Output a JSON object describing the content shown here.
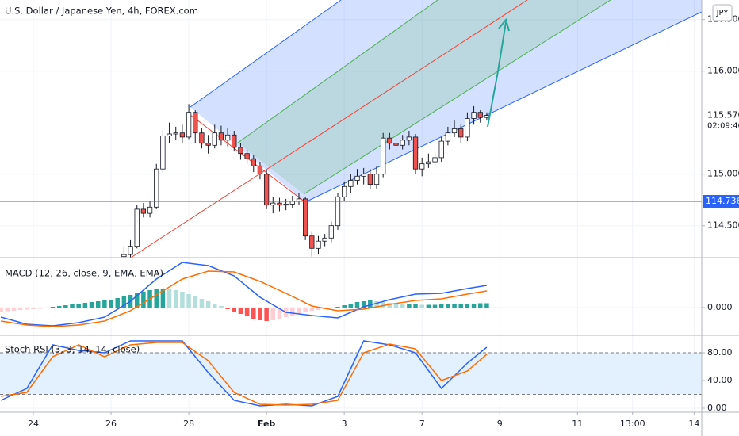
{
  "chart_data": [
    {
      "type": "candlestick",
      "title": "U.S. Dollar / Japanese Yen, 4h, FOREX.com",
      "currency": "JPY",
      "xlim": [
        -5.14,
        103.18
      ],
      "ylim": [
        114.19,
        116.69
      ],
      "yticks": [
        {
          "value": 114.5,
          "label": "114.500"
        },
        {
          "value": 115,
          "label": "115.000"
        },
        {
          "value": 116,
          "label": "116.000"
        },
        {
          "value": 116.5,
          "label": "116.500"
        }
      ],
      "grid": true,
      "up_color": "#ffffff",
      "down_color": "#ef5350",
      "wick_color": "#131722",
      "x": [
        14,
        15,
        16,
        17,
        18,
        19,
        20,
        21,
        22,
        23,
        24,
        25,
        26,
        27,
        28,
        29,
        30,
        31,
        32,
        33,
        34,
        35,
        36,
        37,
        38,
        39,
        40,
        41,
        42,
        43,
        44,
        45,
        46,
        47,
        48,
        49,
        50,
        51,
        52,
        53,
        54,
        55,
        56,
        57,
        58,
        59,
        60,
        61,
        62,
        63,
        64,
        65,
        66,
        67,
        68,
        69,
        70
      ],
      "open": [
        114.2,
        114.22,
        114.3,
        114.66,
        114.62,
        114.68,
        115.05,
        115.37,
        115.39,
        115.4,
        115.36,
        115.6,
        115.4,
        115.3,
        115.28,
        115.4,
        115.33,
        115.38,
        115.26,
        115.2,
        115.15,
        115.08,
        115.0,
        114.7,
        114.72,
        114.7,
        114.71,
        114.74,
        114.76,
        114.4,
        114.28,
        114.35,
        114.38,
        114.5,
        114.78,
        114.88,
        114.94,
        114.98,
        115.0,
        114.9,
        115.0,
        115.35,
        115.3,
        115.28,
        115.33,
        115.36,
        115.05,
        115.1,
        115.12,
        115.16,
        115.32,
        115.4,
        115.44,
        115.36,
        115.54,
        115.6,
        115.55
      ],
      "high": [
        114.3,
        114.36,
        114.7,
        114.72,
        114.74,
        115.1,
        115.43,
        115.5,
        115.46,
        115.48,
        115.68,
        115.62,
        115.45,
        115.38,
        115.48,
        115.47,
        115.45,
        115.42,
        115.3,
        115.24,
        115.19,
        115.12,
        115.04,
        114.78,
        114.77,
        114.76,
        114.79,
        114.82,
        114.78,
        114.44,
        114.4,
        114.42,
        114.54,
        114.82,
        114.93,
        115.0,
        115.05,
        115.06,
        115.05,
        115.08,
        115.4,
        115.4,
        115.36,
        115.38,
        115.42,
        115.39,
        115.16,
        115.2,
        115.22,
        115.36,
        115.46,
        115.52,
        115.48,
        115.6,
        115.66,
        115.62,
        115.6
      ],
      "low": [
        114.17,
        114.18,
        114.28,
        114.58,
        114.58,
        114.66,
        115.02,
        115.3,
        115.33,
        115.3,
        115.34,
        115.3,
        115.25,
        115.2,
        115.25,
        115.28,
        115.27,
        115.22,
        115.14,
        115.1,
        115.02,
        114.95,
        114.66,
        114.62,
        114.64,
        114.65,
        114.67,
        114.7,
        114.36,
        114.2,
        114.22,
        114.3,
        114.34,
        114.46,
        114.74,
        114.82,
        114.9,
        114.9,
        114.85,
        114.86,
        114.97,
        115.24,
        115.22,
        115.24,
        115.28,
        115.0,
        114.98,
        115.06,
        115.08,
        115.12,
        115.28,
        115.36,
        115.3,
        115.32,
        115.48,
        115.5,
        115.52
      ],
      "close": [
        114.22,
        114.3,
        114.66,
        114.62,
        114.68,
        115.05,
        115.37,
        115.39,
        115.4,
        115.36,
        115.6,
        115.4,
        115.3,
        115.28,
        115.4,
        115.33,
        115.38,
        115.26,
        115.2,
        115.15,
        115.08,
        115.0,
        114.7,
        114.72,
        114.7,
        114.71,
        114.74,
        114.76,
        114.4,
        114.28,
        114.35,
        114.38,
        114.5,
        114.78,
        114.88,
        114.94,
        114.98,
        115.0,
        114.9,
        115.0,
        115.35,
        115.3,
        115.28,
        115.33,
        115.36,
        115.05,
        115.1,
        115.12,
        115.16,
        115.32,
        115.4,
        115.44,
        115.36,
        115.54,
        115.6,
        115.55,
        115.57
      ],
      "last_value": {
        "value": 115.57,
        "label": "115.570"
      },
      "countdown": "02:09:46",
      "hline": {
        "value": 114.736,
        "label": "114.736",
        "color": "#2962ff"
      }
    },
    {
      "type": "macd",
      "title": "MACD (12, 26, close, 9, EMA, EMA)",
      "xlim": [
        -5.14,
        103.18
      ],
      "ylim": [
        -0.07,
        0.126
      ],
      "yticks": [
        {
          "value": 0,
          "label": "0.000"
        }
      ],
      "grid": true,
      "series": [
        {
          "color": "#2962ff",
          "x": [
            -5,
            -1,
            3,
            7,
            11,
            15,
            19,
            23,
            27,
            31,
            35,
            39,
            43,
            47,
            51,
            55,
            59,
            63,
            67,
            70
          ],
          "values": [
            -0.024,
            -0.042,
            -0.046,
            -0.038,
            -0.024,
            0.016,
            0.072,
            0.114,
            0.106,
            0.08,
            0.026,
            -0.012,
            -0.02,
            -0.026,
            0.002,
            0.02,
            0.034,
            0.036,
            0.048,
            0.056
          ]
        },
        {
          "color": "#ff6d00",
          "x": [
            -5,
            -1,
            3,
            7,
            11,
            15,
            19,
            23,
            27,
            31,
            35,
            39,
            43,
            47,
            51,
            55,
            59,
            63,
            67,
            70
          ],
          "values": [
            -0.034,
            -0.044,
            -0.048,
            -0.044,
            -0.034,
            -0.008,
            0.032,
            0.072,
            0.092,
            0.09,
            0.066,
            0.036,
            0.004,
            -0.008,
            -0.004,
            0.008,
            0.018,
            0.022,
            0.034,
            0.042
          ]
        }
      ],
      "histogram": {
        "colors": [
          "#26a69a",
          "#b2dfdb",
          "#ffcdd2",
          "#ff5252"
        ],
        "x": [
          -5,
          -4,
          -3,
          -2,
          -1,
          0,
          1,
          2,
          3,
          4,
          5,
          6,
          7,
          8,
          9,
          10,
          11,
          12,
          13,
          14,
          15,
          16,
          17,
          18,
          19,
          20,
          21,
          22,
          23,
          24,
          25,
          26,
          27,
          28,
          29,
          30,
          31,
          32,
          33,
          34,
          35,
          36,
          37,
          38,
          39,
          40,
          41,
          42,
          43,
          44,
          45,
          46,
          47,
          48,
          49,
          50,
          51,
          52,
          53,
          54,
          55,
          56,
          57,
          58,
          59,
          60,
          61,
          62,
          63,
          64,
          65,
          66,
          67,
          68,
          69,
          70
        ],
        "values": [
          -0.01,
          -0.009,
          -0.008,
          -0.006,
          -0.005,
          -0.004,
          -0.003,
          -0.002,
          0.002,
          0.004,
          0.006,
          0.008,
          0.01,
          0.012,
          0.014,
          0.016,
          0.018,
          0.02,
          0.024,
          0.028,
          0.032,
          0.036,
          0.04,
          0.044,
          0.046,
          0.048,
          0.046,
          0.044,
          0.04,
          0.034,
          0.028,
          0.022,
          0.016,
          0.01,
          0.004,
          -0.004,
          -0.01,
          -0.016,
          -0.022,
          -0.028,
          -0.032,
          -0.034,
          -0.032,
          -0.028,
          -0.024,
          -0.02,
          -0.016,
          -0.012,
          -0.008,
          -0.006,
          -0.004,
          -0.002,
          0.002,
          0.006,
          0.01,
          0.014,
          0.016,
          0.018,
          0.016,
          0.014,
          0.012,
          0.01,
          0.008,
          0.008,
          0.008,
          0.007,
          0.007,
          0.007,
          0.008,
          0.008,
          0.009,
          0.009,
          0.01,
          0.01,
          0.011,
          0.011
        ]
      }
    },
    {
      "type": "stochrsi",
      "title": "Stoch RSI (3, 3, 14, 14, close)",
      "xlim": [
        -5.14,
        103.18
      ],
      "ylim": [
        -5.71,
        105.14
      ],
      "yticks": [
        {
          "value": 0,
          "label": "0.00"
        },
        {
          "value": 40,
          "label": "40.00"
        },
        {
          "value": 80,
          "label": "80.00"
        }
      ],
      "grid": true,
      "band": [
        20,
        80
      ],
      "band_color": "#e3f0fd",
      "xticks": [
        {
          "value": 0,
          "label": "24"
        },
        {
          "value": 12,
          "label": "26"
        },
        {
          "value": 24,
          "label": "28"
        },
        {
          "value": 36,
          "label": "Feb"
        },
        {
          "value": 48,
          "label": "3"
        },
        {
          "value": 60,
          "label": "7"
        },
        {
          "value": 72,
          "label": "9"
        },
        {
          "value": 84,
          "label": "11"
        },
        {
          "value": 92.5,
          "label": "13:00"
        },
        {
          "value": 102,
          "label": "14"
        }
      ],
      "series": [
        {
          "color": "#2962ff",
          "x": [
            -5,
            -1,
            3,
            7,
            11,
            15,
            19,
            23,
            27,
            31,
            35,
            39,
            43,
            47,
            51,
            55,
            59,
            63,
            67,
            70
          ],
          "values": [
            11.4,
            28.6,
            91.4,
            83.4,
            80.0,
            97.1,
            97.1,
            97.1,
            51.4,
            11.4,
            3.4,
            5.7,
            3.4,
            17.1,
            97.1,
            91.4,
            80.0,
            28.6,
            65.1,
            88.0
          ]
        },
        {
          "color": "#ff6d00",
          "x": [
            -5,
            -1,
            3,
            7,
            11,
            15,
            19,
            23,
            27,
            31,
            35,
            39,
            43,
            47,
            51,
            55,
            59,
            63,
            67,
            70
          ],
          "values": [
            17.1,
            22.9,
            74.3,
            91.4,
            74.3,
            91.4,
            94.9,
            94.9,
            68.6,
            22.9,
            5.7,
            4.6,
            5.7,
            11.4,
            80.0,
            92.6,
            85.7,
            40.0,
            53.7,
            77.7
          ]
        }
      ]
    }
  ]
}
